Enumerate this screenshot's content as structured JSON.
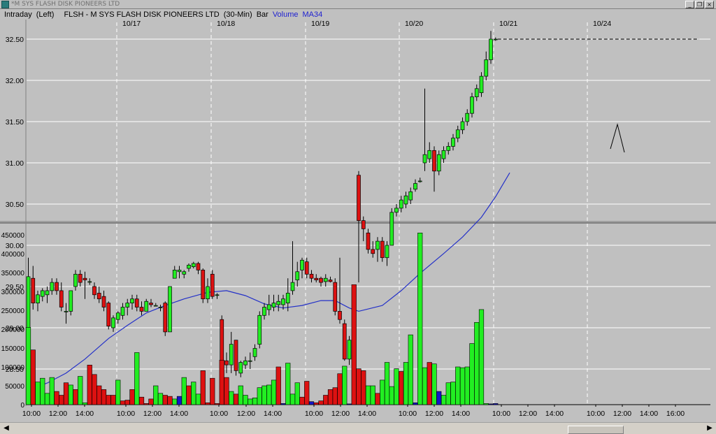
{
  "window": {
    "title": "*M SYS FLASH DISK PIONEERS LTD",
    "minimize": "_",
    "restore": "❐",
    "close": "×"
  },
  "header": {
    "mode": "Intraday",
    "axis_side": "(Left)",
    "symbol": "FLSH - M SYS FLASH DISK PIONEERS LTD",
    "interval": "(30-Min)",
    "chart_style": "Bar",
    "volume_label": "Volume",
    "ma_label": "MA34"
  },
  "colors": {
    "up": "#22ee22",
    "down": "#dd1111",
    "ma": "#2431c8",
    "neutral": "#1515c8",
    "grid": "#ffffff",
    "background": "#c0c0c0"
  },
  "scroll_icons": [
    "arrow-left-icon",
    "arrow-right-icon"
  ],
  "chart_data": [
    {
      "type": "candlestick",
      "title": "",
      "date_labels": [
        "10/17",
        "10/18",
        "10/19",
        "10/20",
        "10/21",
        "10/24"
      ],
      "y_tick_labels": [
        "32.50",
        "32.00",
        "31.50",
        "31.00",
        "30.50",
        "30.00",
        "29.50",
        "29.00",
        "28.50"
      ],
      "ylim": [
        28.3,
        32.8
      ],
      "grid": true,
      "ma_series": {
        "name": "MA34",
        "values": [
          [
            1,
            28.27
          ],
          [
            4,
            28.33
          ],
          [
            8,
            28.45
          ],
          [
            12,
            28.62
          ],
          [
            17,
            28.87
          ],
          [
            21,
            29.03
          ],
          [
            25,
            29.18
          ],
          [
            29,
            29.27
          ],
          [
            33,
            29.35
          ],
          [
            38,
            29.43
          ],
          [
            42,
            29.45
          ],
          [
            46,
            29.39
          ],
          [
            50,
            29.29
          ],
          [
            54,
            29.24
          ],
          [
            58,
            29.27
          ],
          [
            62,
            29.33
          ],
          [
            65,
            29.33
          ],
          [
            68,
            29.24
          ],
          [
            70,
            29.2
          ],
          [
            75,
            29.27
          ],
          [
            79,
            29.45
          ],
          [
            83,
            29.66
          ],
          [
            88,
            29.9
          ],
          [
            92,
            30.1
          ],
          [
            96,
            30.34
          ],
          [
            99,
            30.59
          ],
          [
            102,
            30.88
          ]
        ]
      },
      "candles": [
        {
          "o": 28.95,
          "h": 29.85,
          "l": 28.95,
          "c": 29.62
        },
        {
          "o": 29.6,
          "h": 29.75,
          "l": 29.22,
          "c": 29.3
        },
        {
          "o": 29.3,
          "h": 29.45,
          "l": 29.2,
          "c": 29.4
        },
        {
          "o": 29.38,
          "h": 29.48,
          "l": 29.32,
          "c": 29.45
        },
        {
          "o": 29.4,
          "h": 29.5,
          "l": 29.3,
          "c": 29.45
        },
        {
          "o": 29.45,
          "h": 29.6,
          "l": 29.4,
          "c": 29.55
        },
        {
          "o": 29.55,
          "h": 29.6,
          "l": 29.4,
          "c": 29.45
        },
        {
          "o": 29.45,
          "h": 29.55,
          "l": 29.2,
          "c": 29.25
        },
        {
          "o": 29.2,
          "h": 29.3,
          "l": 29.05,
          "c": 29.2
        },
        {
          "o": 29.2,
          "h": 29.45,
          "l": 29.15,
          "c": 29.45
        },
        {
          "o": 29.5,
          "h": 29.7,
          "l": 29.45,
          "c": 29.65
        },
        {
          "o": 29.65,
          "h": 29.7,
          "l": 29.5,
          "c": 29.55
        },
        {
          "o": 29.6,
          "h": 29.68,
          "l": 29.35,
          "c": 29.58
        },
        {
          "o": 29.56,
          "h": 29.6,
          "l": 29.52,
          "c": 29.56
        },
        {
          "o": 29.5,
          "h": 29.55,
          "l": 29.35,
          "c": 29.4
        },
        {
          "o": 29.42,
          "h": 29.5,
          "l": 29.3,
          "c": 29.35
        },
        {
          "o": 29.38,
          "h": 29.45,
          "l": 29.2,
          "c": 29.25
        },
        {
          "o": 29.3,
          "h": 29.32,
          "l": 28.98,
          "c": 29.02
        },
        {
          "o": 29.0,
          "h": 29.15,
          "l": 28.95,
          "c": 29.12
        },
        {
          "o": 29.1,
          "h": 29.2,
          "l": 29.05,
          "c": 29.18
        },
        {
          "o": 29.15,
          "h": 29.3,
          "l": 29.1,
          "c": 29.25
        },
        {
          "o": 29.25,
          "h": 29.35,
          "l": 29.15,
          "c": 29.3
        },
        {
          "o": 29.3,
          "h": 29.4,
          "l": 29.22,
          "c": 29.35
        },
        {
          "o": 29.35,
          "h": 29.4,
          "l": 29.2,
          "c": 29.25
        },
        {
          "o": 29.25,
          "h": 29.32,
          "l": 29.15,
          "c": 29.2
        },
        {
          "o": 29.2,
          "h": 29.35,
          "l": 29.2,
          "c": 29.32
        },
        {
          "o": 29.3,
          "h": 29.35,
          "l": 29.25,
          "c": 29.28
        },
        {
          "o": 29.27,
          "h": 29.3,
          "l": 29.26,
          "c": 29.27
        },
        {
          "o": 29.25,
          "h": 29.28,
          "l": 29.2,
          "c": 29.25
        },
        {
          "o": 29.3,
          "h": 29.32,
          "l": 28.9,
          "c": 28.95
        },
        {
          "o": 28.95,
          "h": 29.5,
          "l": 28.95,
          "c": 29.5
        },
        {
          "o": 29.6,
          "h": 29.75,
          "l": 29.6,
          "c": 29.7
        },
        {
          "o": 29.68,
          "h": 29.75,
          "l": 29.6,
          "c": 29.7
        },
        {
          "o": 29.65,
          "h": 29.7,
          "l": 29.6,
          "c": 29.68
        },
        {
          "o": 29.72,
          "h": 29.78,
          "l": 29.68,
          "c": 29.76
        },
        {
          "o": 29.74,
          "h": 29.8,
          "l": 29.72,
          "c": 29.78
        },
        {
          "o": 29.78,
          "h": 29.8,
          "l": 29.65,
          "c": 29.7
        },
        {
          "o": 29.7,
          "h": 29.72,
          "l": 29.3,
          "c": 29.35
        },
        {
          "o": 29.35,
          "h": 29.6,
          "l": 29.3,
          "c": 29.5
        },
        {
          "o": 29.65,
          "h": 29.7,
          "l": 29.35,
          "c": 29.38
        },
        {
          "o": 29.4,
          "h": 29.42,
          "l": 29.35,
          "c": 29.4
        },
        {
          "o": 29.1,
          "h": 29.15,
          "l": 28.45,
          "c": 28.52
        },
        {
          "o": 28.6,
          "h": 28.7,
          "l": 28.45,
          "c": 28.55
        },
        {
          "o": 28.55,
          "h": 28.95,
          "l": 28.45,
          "c": 28.8
        },
        {
          "o": 28.85,
          "h": 28.85,
          "l": 28.42,
          "c": 28.48
        },
        {
          "o": 28.45,
          "h": 28.6,
          "l": 28.4,
          "c": 28.58
        },
        {
          "o": 28.55,
          "h": 28.65,
          "l": 28.5,
          "c": 28.6
        },
        {
          "o": 28.6,
          "h": 28.7,
          "l": 28.5,
          "c": 28.6
        },
        {
          "o": 28.65,
          "h": 28.8,
          "l": 28.6,
          "c": 28.75
        },
        {
          "o": 28.8,
          "h": 29.2,
          "l": 28.75,
          "c": 29.15
        },
        {
          "o": 29.15,
          "h": 29.3,
          "l": 29.1,
          "c": 29.25
        },
        {
          "o": 29.22,
          "h": 29.4,
          "l": 29.15,
          "c": 29.28
        },
        {
          "o": 29.25,
          "h": 29.4,
          "l": 29.2,
          "c": 29.3
        },
        {
          "o": 29.28,
          "h": 29.4,
          "l": 29.2,
          "c": 29.32
        },
        {
          "o": 29.28,
          "h": 29.4,
          "l": 29.22,
          "c": 29.35
        },
        {
          "o": 29.3,
          "h": 29.6,
          "l": 29.2,
          "c": 29.42
        },
        {
          "o": 29.45,
          "h": 30.05,
          "l": 29.4,
          "c": 29.55
        },
        {
          "o": 29.58,
          "h": 29.8,
          "l": 29.5,
          "c": 29.68
        },
        {
          "o": 29.7,
          "h": 29.85,
          "l": 29.6,
          "c": 29.82
        },
        {
          "o": 29.8,
          "h": 29.85,
          "l": 29.6,
          "c": 29.65
        },
        {
          "o": 29.65,
          "h": 29.7,
          "l": 29.55,
          "c": 29.6
        },
        {
          "o": 29.6,
          "h": 29.65,
          "l": 29.55,
          "c": 29.58
        },
        {
          "o": 29.6,
          "h": 29.62,
          "l": 29.5,
          "c": 29.55
        },
        {
          "o": 29.56,
          "h": 29.65,
          "l": 29.5,
          "c": 29.6
        },
        {
          "o": 29.58,
          "h": 29.62,
          "l": 29.55,
          "c": 29.56
        },
        {
          "o": 29.55,
          "h": 29.6,
          "l": 29.15,
          "c": 29.2
        },
        {
          "o": 29.2,
          "h": 29.85,
          "l": 29.05,
          "c": 29.1
        },
        {
          "o": 29.05,
          "h": 29.1,
          "l": 28.6,
          "c": 28.62
        },
        {
          "o": 28.62,
          "h": 28.9,
          "l": 28.55,
          "c": 28.85
        },
        {
          "o": 28.78,
          "h": 28.8,
          "l": 28.76,
          "c": 28.78
        },
        {
          "o": 30.85,
          "h": 30.9,
          "l": 29.55,
          "c": 30.3
        },
        {
          "o": 30.3,
          "h": 30.35,
          "l": 30.05,
          "c": 30.2
        },
        {
          "o": 30.15,
          "h": 30.2,
          "l": 29.9,
          "c": 29.95
        },
        {
          "o": 29.95,
          "h": 30.05,
          "l": 29.85,
          "c": 29.9
        },
        {
          "o": 29.95,
          "h": 30.1,
          "l": 29.8,
          "c": 30.05
        },
        {
          "o": 30.05,
          "h": 30.1,
          "l": 29.8,
          "c": 29.85
        },
        {
          "o": 29.85,
          "h": 30.05,
          "l": 29.75,
          "c": 30.0
        },
        {
          "o": 30.0,
          "h": 30.45,
          "l": 30.0,
          "c": 30.4
        },
        {
          "o": 30.4,
          "h": 30.5,
          "l": 30.35,
          "c": 30.45
        },
        {
          "o": 30.45,
          "h": 30.6,
          "l": 30.4,
          "c": 30.55
        },
        {
          "o": 30.5,
          "h": 30.65,
          "l": 30.45,
          "c": 30.6
        },
        {
          "o": 30.55,
          "h": 30.7,
          "l": 30.5,
          "c": 30.65
        },
        {
          "o": 30.68,
          "h": 30.8,
          "l": 30.65,
          "c": 30.75
        },
        {
          "o": 30.78,
          "h": 30.82,
          "l": 30.76,
          "c": 30.78
        },
        {
          "o": 31.0,
          "h": 31.9,
          "l": 30.9,
          "c": 31.1
        },
        {
          "o": 31.05,
          "h": 31.25,
          "l": 31.0,
          "c": 31.15
        },
        {
          "o": 31.15,
          "h": 31.2,
          "l": 30.65,
          "c": 30.9
        },
        {
          "o": 30.9,
          "h": 31.15,
          "l": 30.85,
          "c": 31.1
        },
        {
          "o": 31.05,
          "h": 31.2,
          "l": 31.0,
          "c": 31.15
        },
        {
          "o": 31.15,
          "h": 31.25,
          "l": 31.1,
          "c": 31.2
        },
        {
          "o": 31.2,
          "h": 31.35,
          "l": 31.15,
          "c": 31.3
        },
        {
          "o": 31.3,
          "h": 31.45,
          "l": 31.25,
          "c": 31.4
        },
        {
          "o": 31.4,
          "h": 31.55,
          "l": 31.35,
          "c": 31.5
        },
        {
          "o": 31.5,
          "h": 31.65,
          "l": 31.45,
          "c": 31.6
        },
        {
          "o": 31.6,
          "h": 31.85,
          "l": 31.55,
          "c": 31.8
        },
        {
          "o": 31.8,
          "h": 31.95,
          "l": 31.75,
          "c": 31.9
        },
        {
          "o": 31.85,
          "h": 32.1,
          "l": 31.8,
          "c": 32.05
        },
        {
          "o": 32.05,
          "h": 32.35,
          "l": 32.0,
          "c": 32.25
        },
        {
          "o": 32.25,
          "h": 32.6,
          "l": 32.2,
          "c": 32.5
        },
        {
          "o": 32.5,
          "h": 32.52,
          "l": 32.48,
          "c": 32.5
        }
      ]
    },
    {
      "type": "bar",
      "title": "",
      "series_name": "Volume",
      "y_tick_labels": [
        "450000",
        "400000",
        "350000",
        "300000",
        "250000",
        "200000",
        "150000",
        "100000",
        "50000",
        "0"
      ],
      "ylim": [
        0,
        475000
      ],
      "x_tick_labels": [
        "10:00",
        "12:00",
        "14:00",
        "10:00",
        "12:00",
        "14:00",
        "10:00",
        "12:00",
        "14:00",
        "10:00",
        "12:00",
        "14:00",
        "10:00",
        "12:00",
        "14:00",
        "10:00",
        "12:00",
        "14:00",
        "10:00",
        "12:00",
        "14:00",
        "16:00"
      ],
      "values": [
        205000,
        145000,
        60000,
        70000,
        30000,
        72000,
        35000,
        25000,
        58000,
        52000,
        40000,
        75000,
        5000,
        105000,
        80000,
        50000,
        40000,
        25000,
        25000,
        65000,
        10000,
        12000,
        40000,
        138000,
        20000,
        3000,
        15000,
        50000,
        30000,
        25000,
        22000,
        15000,
        22000,
        72000,
        50000,
        60000,
        28000,
        90000,
        5000,
        70000,
        3000,
        118000,
        72000,
        35000,
        28000,
        50000,
        25000,
        15000,
        18000,
        45000,
        50000,
        52000,
        65000,
        100000,
        3000,
        110000,
        28000,
        58000,
        20000,
        62000,
        8000,
        5000,
        10000,
        25000,
        40000,
        45000,
        82000,
        102000,
        2000,
        318000,
        95000,
        90000,
        50000,
        50000,
        30000,
        65000,
        112000,
        48000,
        95000,
        88000,
        112000,
        185000,
        5000,
        455000,
        98000,
        112000,
        108000,
        35000,
        25000,
        58000,
        60000,
        100000,
        98000,
        100000,
        162000,
        218000,
        252000,
        3000,
        2000,
        3000
      ],
      "directions": [
        "u",
        "d",
        "u",
        "u",
        "u",
        "u",
        "d",
        "d",
        "d",
        "u",
        "d",
        "u",
        "u",
        "d",
        "d",
        "d",
        "d",
        "d",
        "d",
        "u",
        "d",
        "d",
        "d",
        "u",
        "d",
        "d",
        "d",
        "u",
        "u",
        "d",
        "d",
        "u",
        "n",
        "u",
        "d",
        "u",
        "u",
        "d",
        "d",
        "d",
        "d",
        "d",
        "d",
        "u",
        "d",
        "u",
        "u",
        "u",
        "u",
        "u",
        "u",
        "u",
        "u",
        "d",
        "n",
        "u",
        "u",
        "u",
        "d",
        "d",
        "n",
        "d",
        "d",
        "d",
        "d",
        "d",
        "d",
        "u",
        "n",
        "d",
        "d",
        "d",
        "u",
        "u",
        "d",
        "u",
        "u",
        "u",
        "u",
        "d",
        "u",
        "u",
        "n",
        "u",
        "u",
        "d",
        "u",
        "n",
        "u",
        "u",
        "u",
        "u",
        "u",
        "u",
        "u",
        "u",
        "u",
        "u",
        "n",
        "n"
      ]
    }
  ]
}
